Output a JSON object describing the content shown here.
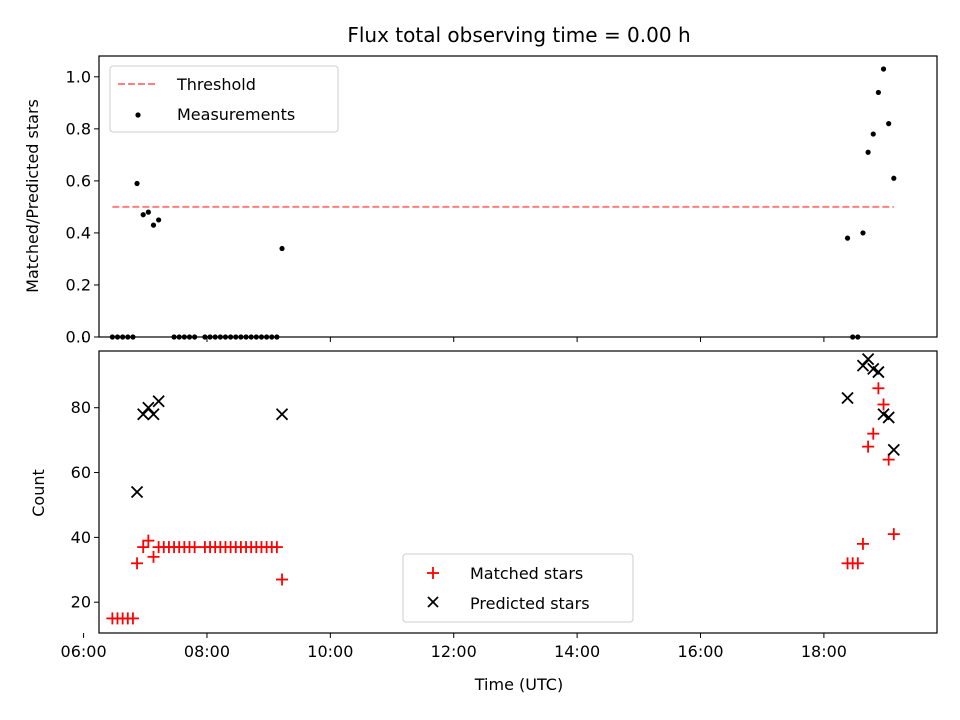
{
  "chart_data": [
    {
      "type": "scatter",
      "title": "Flux total observing time = 0.00 h",
      "xlabel": "",
      "ylabel": "Matched/Predicted stars",
      "ylim": [
        0,
        1.08
      ],
      "yticks": [
        "0.0",
        "0.2",
        "0.4",
        "0.6",
        "0.8",
        "1.0"
      ],
      "ytick_values": [
        0,
        0.2,
        0.4,
        0.6,
        0.8,
        1.0
      ],
      "xlim": [
        "06:15",
        "19:50"
      ],
      "grid": false,
      "legend": "top-left",
      "series": [
        {
          "name": "Threshold",
          "style": "dashed-line",
          "color": "#ff7f7f",
          "points": [
            [
              "06:28",
              0.5
            ],
            [
              "19:08",
              0.5
            ]
          ]
        },
        {
          "name": "Measurements",
          "style": "dot",
          "color": "#000000",
          "points": [
            [
              "06:28",
              0.0
            ],
            [
              "06:33",
              0.0
            ],
            [
              "06:38",
              0.0
            ],
            [
              "06:43",
              0.0
            ],
            [
              "06:48",
              0.0
            ],
            [
              "06:52",
              0.59
            ],
            [
              "06:58",
              0.47
            ],
            [
              "07:03",
              0.48
            ],
            [
              "07:08",
              0.43
            ],
            [
              "07:13",
              0.45
            ],
            [
              "07:28",
              0.0
            ],
            [
              "07:33",
              0.0
            ],
            [
              "07:38",
              0.0
            ],
            [
              "07:43",
              0.0
            ],
            [
              "07:48",
              0.0
            ],
            [
              "07:58",
              0.0
            ],
            [
              "08:03",
              0.0
            ],
            [
              "08:08",
              0.0
            ],
            [
              "08:13",
              0.0
            ],
            [
              "08:18",
              0.0
            ],
            [
              "08:23",
              0.0
            ],
            [
              "08:28",
              0.0
            ],
            [
              "08:33",
              0.0
            ],
            [
              "08:38",
              0.0
            ],
            [
              "08:43",
              0.0
            ],
            [
              "08:48",
              0.0
            ],
            [
              "08:53",
              0.0
            ],
            [
              "08:58",
              0.0
            ],
            [
              "09:03",
              0.0
            ],
            [
              "09:08",
              0.0
            ],
            [
              "09:13",
              0.34
            ],
            [
              "18:23",
              0.38
            ],
            [
              "18:28",
              0.0
            ],
            [
              "18:33",
              0.0
            ],
            [
              "18:38",
              0.4
            ],
            [
              "18:43",
              0.71
            ],
            [
              "18:48",
              0.78
            ],
            [
              "18:53",
              0.94
            ],
            [
              "18:58",
              1.03
            ],
            [
              "19:03",
              0.82
            ],
            [
              "19:08",
              0.61
            ]
          ]
        }
      ]
    },
    {
      "type": "scatter",
      "title": "",
      "xlabel": "Time (UTC)",
      "ylabel": "Count",
      "ylim": [
        10.5,
        97.5
      ],
      "yticks": [
        "20",
        "40",
        "60",
        "80"
      ],
      "ytick_values": [
        20,
        40,
        60,
        80
      ],
      "xlim": [
        "06:15",
        "19:50"
      ],
      "xticks": [
        "06:00",
        "08:00",
        "10:00",
        "12:00",
        "14:00",
        "16:00",
        "18:00"
      ],
      "grid": false,
      "legend": "lower-center",
      "series": [
        {
          "name": "Matched stars",
          "style": "plus",
          "color": "#ff0000",
          "points": [
            [
              "06:28",
              15
            ],
            [
              "06:33",
              15
            ],
            [
              "06:38",
              15
            ],
            [
              "06:43",
              15
            ],
            [
              "06:48",
              15
            ],
            [
              "06:52",
              32
            ],
            [
              "06:58",
              37
            ],
            [
              "07:03",
              39
            ],
            [
              "07:08",
              34
            ],
            [
              "07:13",
              37
            ],
            [
              "07:18",
              37
            ],
            [
              "07:23",
              37
            ],
            [
              "07:28",
              37
            ],
            [
              "07:33",
              37
            ],
            [
              "07:38",
              37
            ],
            [
              "07:43",
              37
            ],
            [
              "07:48",
              37
            ],
            [
              "07:58",
              37
            ],
            [
              "08:03",
              37
            ],
            [
              "08:08",
              37
            ],
            [
              "08:13",
              37
            ],
            [
              "08:18",
              37
            ],
            [
              "08:23",
              37
            ],
            [
              "08:28",
              37
            ],
            [
              "08:33",
              37
            ],
            [
              "08:38",
              37
            ],
            [
              "08:43",
              37
            ],
            [
              "08:48",
              37
            ],
            [
              "08:53",
              37
            ],
            [
              "08:58",
              37
            ],
            [
              "09:03",
              37
            ],
            [
              "09:08",
              37
            ],
            [
              "09:13",
              27
            ],
            [
              "18:23",
              32
            ],
            [
              "18:28",
              32
            ],
            [
              "18:33",
              32
            ],
            [
              "18:38",
              38
            ],
            [
              "18:43",
              68
            ],
            [
              "18:48",
              72
            ],
            [
              "18:53",
              86
            ],
            [
              "18:58",
              81
            ],
            [
              "19:03",
              64
            ],
            [
              "19:08",
              41
            ]
          ]
        },
        {
          "name": "Predicted stars",
          "style": "x",
          "color": "#000000",
          "points": [
            [
              "06:52",
              54
            ],
            [
              "06:58",
              78
            ],
            [
              "07:03",
              80
            ],
            [
              "07:08",
              78
            ],
            [
              "07:13",
              82
            ],
            [
              "09:13",
              78
            ],
            [
              "18:23",
              83
            ],
            [
              "18:38",
              93
            ],
            [
              "18:43",
              95
            ],
            [
              "18:48",
              92
            ],
            [
              "18:53",
              91
            ],
            [
              "18:58",
              78
            ],
            [
              "19:03",
              77
            ],
            [
              "19:08",
              67
            ]
          ]
        }
      ]
    }
  ]
}
